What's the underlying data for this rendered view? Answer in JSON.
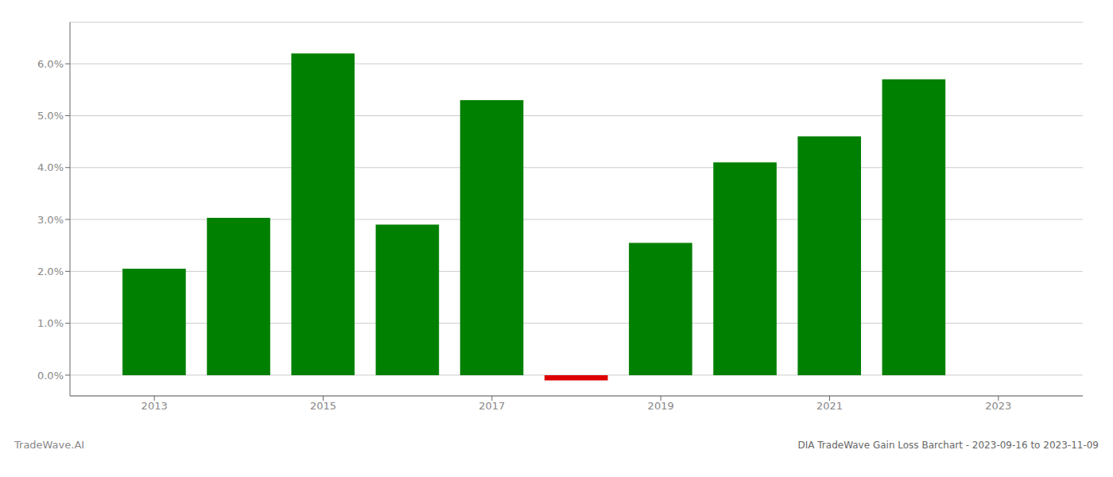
{
  "chart_data": {
    "type": "bar",
    "title": "DIA TradeWave Gain Loss Barchart - 2023-09-16 to 2023-11-09",
    "annotations": [
      "TradeWave.AI"
    ],
    "x": [
      2013,
      2014,
      2015,
      2016,
      2017,
      2018,
      2019,
      2020,
      2021,
      2022,
      2023
    ],
    "values": [
      0.0205,
      0.0303,
      0.062,
      0.029,
      0.053,
      -0.001,
      0.0255,
      0.041,
      0.046,
      0.057,
      0.0
    ],
    "colors": [
      "#008000",
      "#008000",
      "#008000",
      "#008000",
      "#008000",
      "#dd0000",
      "#008000",
      "#008000",
      "#008000",
      "#008000",
      "#008000"
    ],
    "xlim": [
      2012.0,
      2024.0
    ],
    "xticks": [
      2013,
      2015,
      2017,
      2019,
      2021,
      2023
    ],
    "ylim": [
      -0.004,
      0.068
    ],
    "yticks": [
      {
        "value": 0,
        "label": "0.0%"
      },
      {
        "value": 0.01,
        "label": "1.0%"
      },
      {
        "value": 0.02,
        "label": "2.0%"
      },
      {
        "value": 0.03,
        "label": "3.0%"
      },
      {
        "value": 0.04,
        "label": "4.0%"
      },
      {
        "value": 0.05,
        "label": "5.0%"
      },
      {
        "value": 0.06,
        "label": "6.0%"
      }
    ],
    "grid": true
  }
}
